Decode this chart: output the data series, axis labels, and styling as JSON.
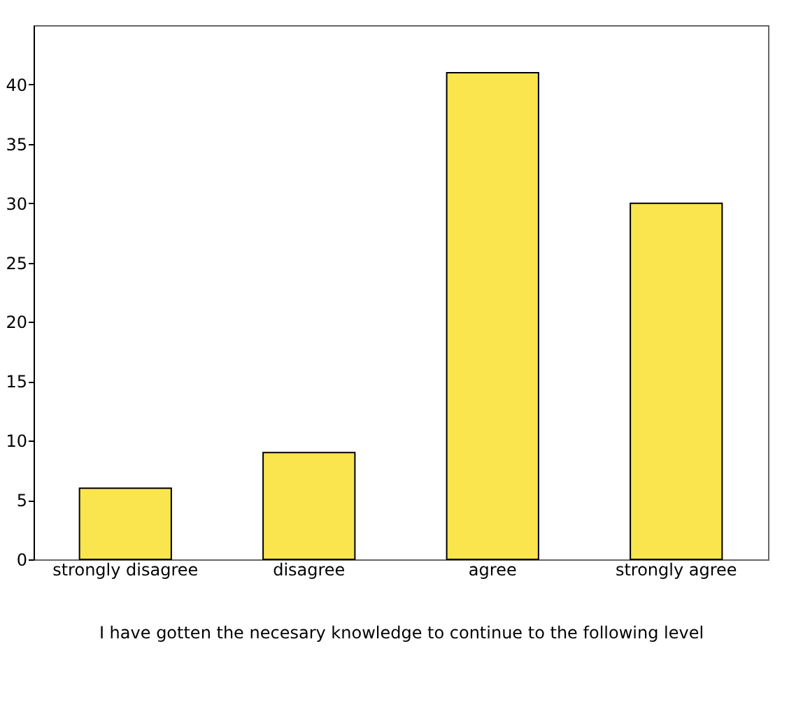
{
  "chart_data": {
    "type": "bar",
    "xlabel": "I have gotten the necesary knowledge to continue to the following level",
    "categories": [
      "strongly disagree",
      "disagree",
      "agree",
      "strongly agree"
    ],
    "values": [
      6,
      9,
      41,
      30
    ],
    "color": "#fbe54e",
    "ylim": [
      0,
      45
    ],
    "yticks": [
      0,
      5,
      10,
      15,
      20,
      25,
      30,
      35,
      40
    ],
    "grid": false
  }
}
